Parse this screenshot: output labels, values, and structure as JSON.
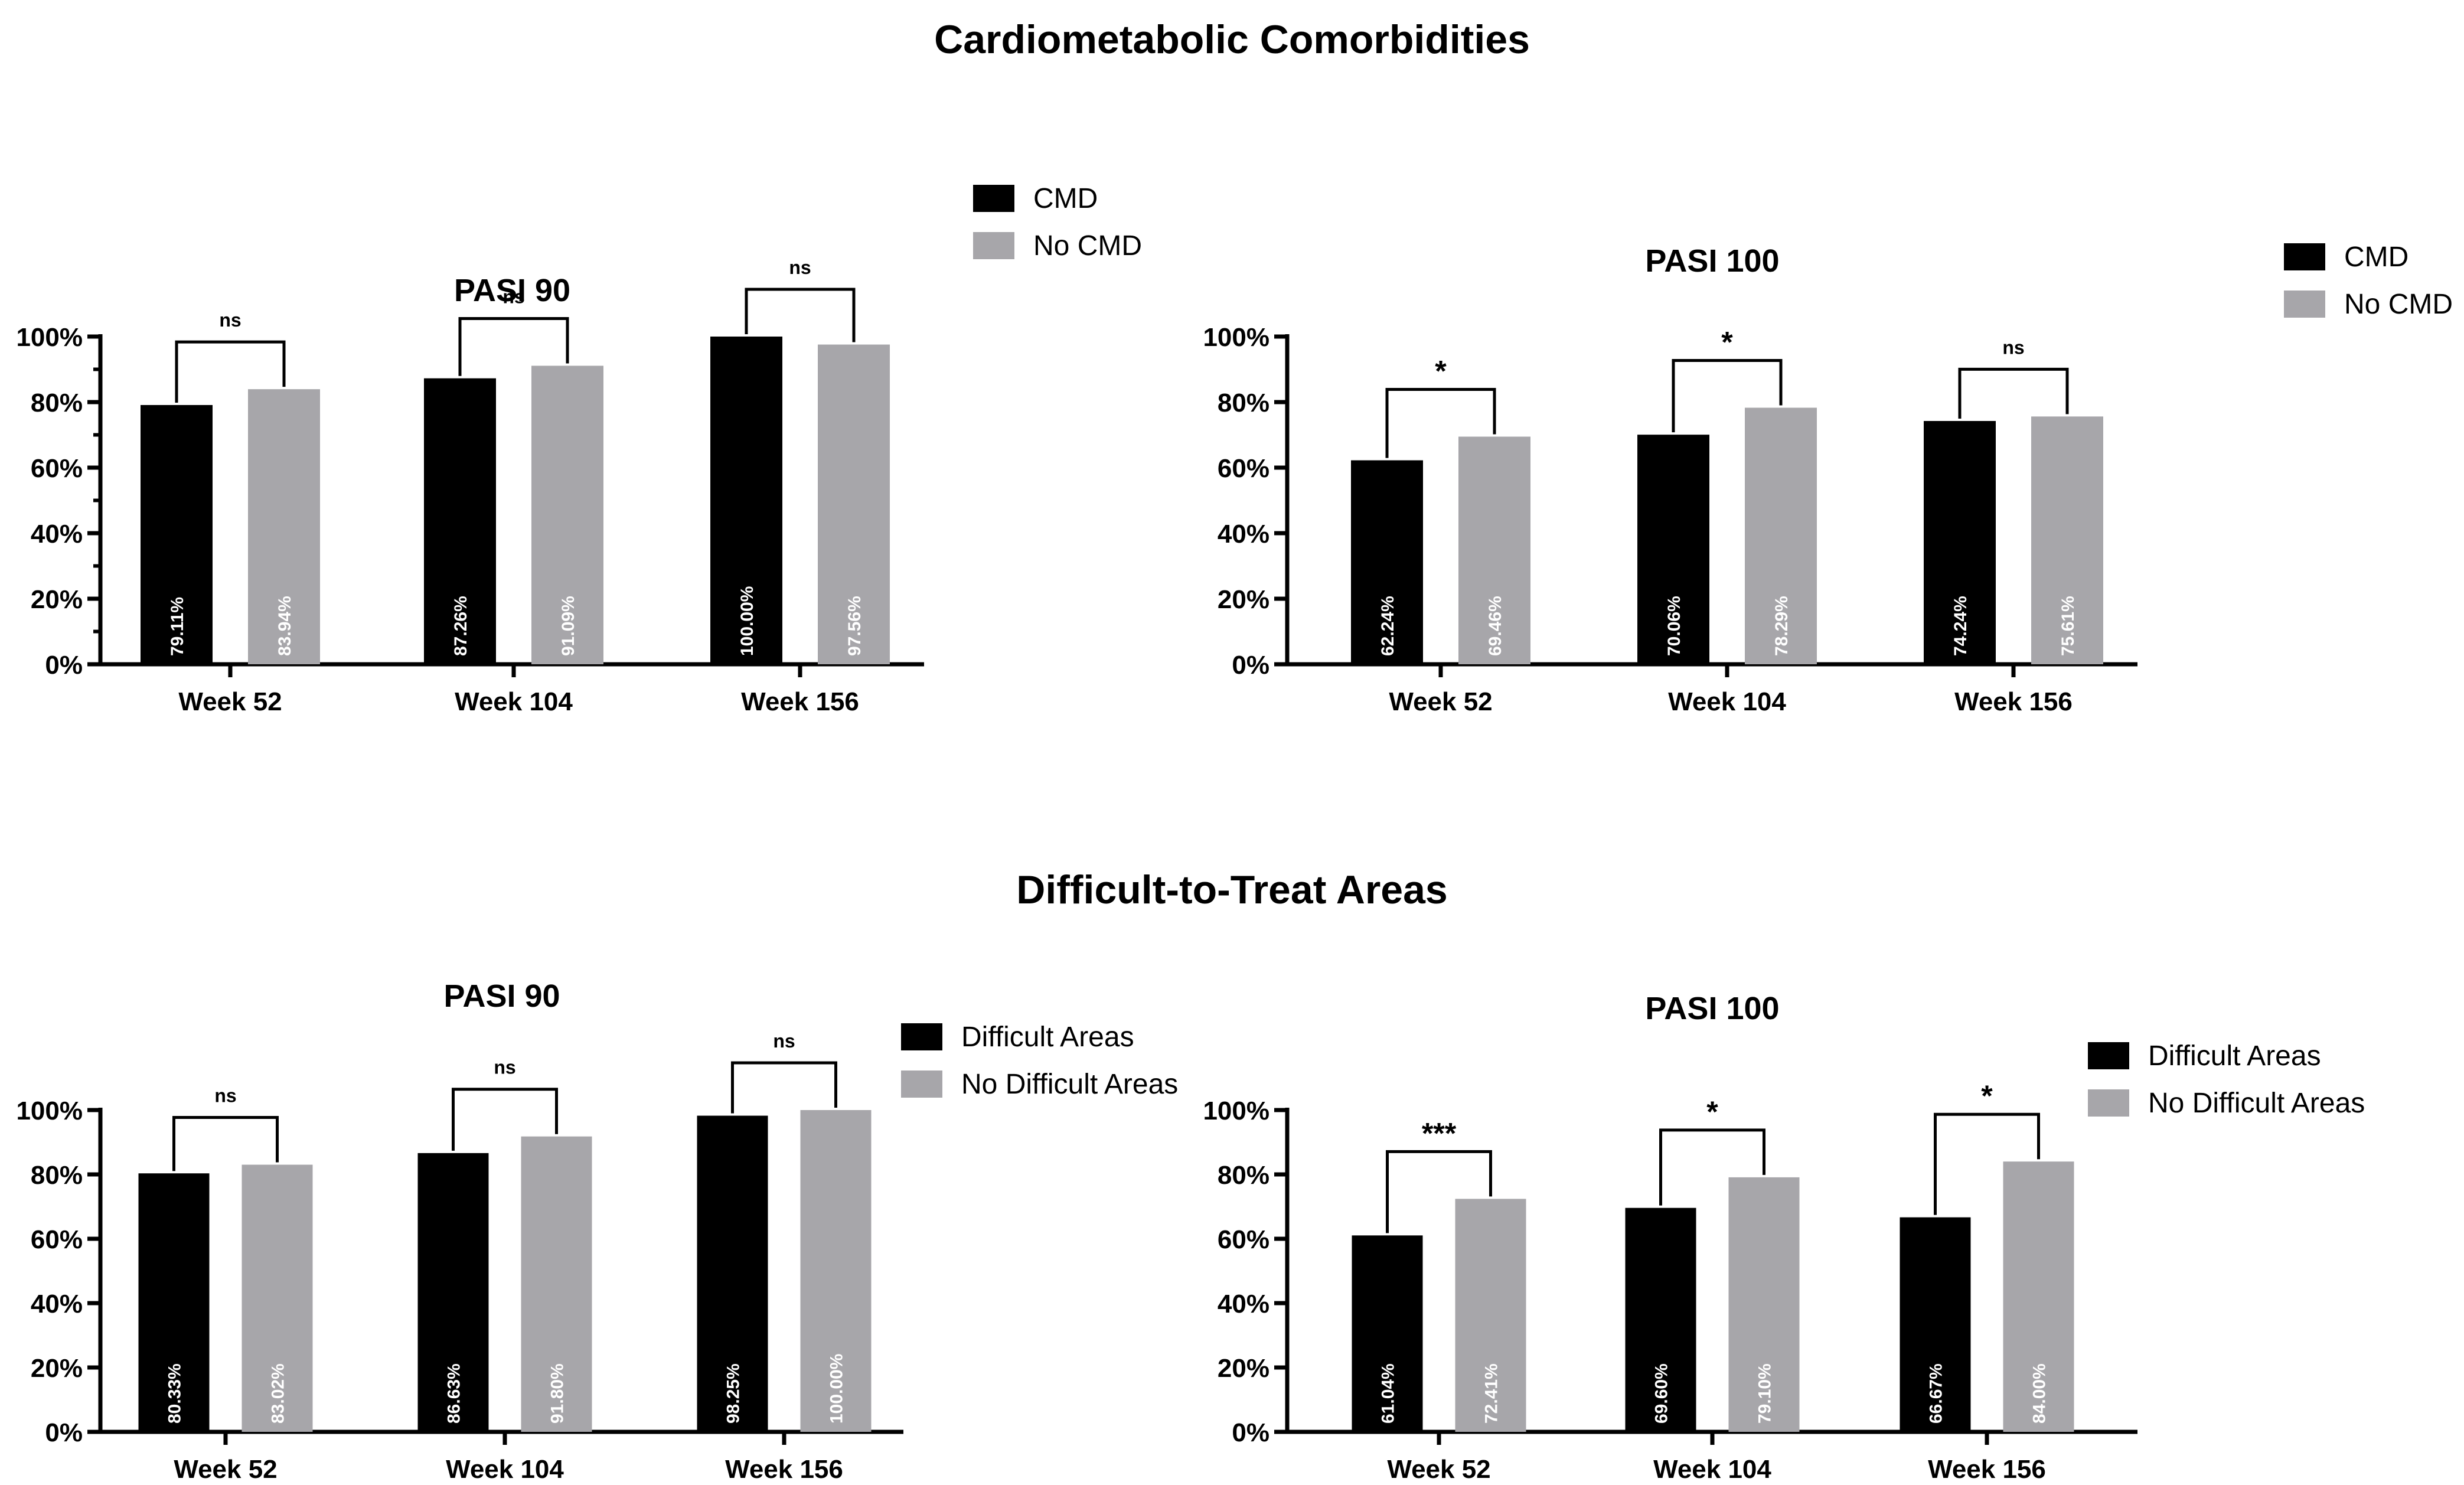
{
  "sections": [
    {
      "title": "Cardiometabolic Comorbidities"
    },
    {
      "title": "Difficult-to-Treat Areas"
    }
  ],
  "colors": {
    "series_a": "#000000",
    "series_b": "#a7a6aa"
  },
  "chart_data": [
    {
      "type": "bar",
      "title": "PASI 90",
      "categories": [
        "Week 52",
        "Week 104",
        "Week 156"
      ],
      "series": [
        {
          "name": "CMD",
          "values": [
            79.11,
            87.26,
            100.0
          ],
          "labels": [
            "79.11%",
            "87.26%",
            "100.00%"
          ]
        },
        {
          "name": "No CMD",
          "values": [
            83.94,
            91.09,
            97.56
          ],
          "labels": [
            "83.94%",
            "91.09%",
            "97.56%"
          ]
        }
      ],
      "significance": [
        "ns",
        "ns",
        "ns"
      ],
      "yticks": [
        "0%",
        "20%",
        "40%",
        "60%",
        "80%",
        "100%"
      ],
      "ylim": [
        0,
        100
      ],
      "xlabel": "",
      "ylabel": "",
      "legend": [
        "CMD",
        "No CMD"
      ]
    },
    {
      "type": "bar",
      "title": "PASI 100",
      "categories": [
        "Week 52",
        "Week 104",
        "Week 156"
      ],
      "series": [
        {
          "name": "CMD",
          "values": [
            62.24,
            70.06,
            74.24
          ],
          "labels": [
            "62.24%",
            "70.06%",
            "74.24%"
          ]
        },
        {
          "name": "No CMD",
          "values": [
            69.46,
            78.29,
            75.61
          ],
          "labels": [
            "69.46%",
            "78.29%",
            "75.61%"
          ]
        }
      ],
      "significance": [
        "*",
        "*",
        "ns"
      ],
      "yticks": [
        "0%",
        "20%",
        "40%",
        "60%",
        "80%",
        "100%"
      ],
      "ylim": [
        0,
        100
      ],
      "xlabel": "",
      "ylabel": "",
      "legend": [
        "CMD",
        "No CMD"
      ]
    },
    {
      "type": "bar",
      "title": "PASI 90",
      "categories": [
        "Week 52",
        "Week 104",
        "Week 156"
      ],
      "series": [
        {
          "name": "Difficult Areas",
          "values": [
            80.33,
            86.63,
            98.25
          ],
          "labels": [
            "80.33%",
            "86.63%",
            "98.25%"
          ]
        },
        {
          "name": "No Difficult Areas",
          "values": [
            83.02,
            91.8,
            100.0
          ],
          "labels": [
            "83.02%",
            "91.80%",
            "100.00%"
          ]
        }
      ],
      "significance": [
        "ns",
        "ns",
        "ns"
      ],
      "yticks": [
        "0%",
        "20%",
        "40%",
        "60%",
        "80%",
        "100%"
      ],
      "ylim": [
        0,
        100
      ],
      "xlabel": "",
      "ylabel": "",
      "legend": [
        "Difficult Areas",
        "No Difficult Areas"
      ]
    },
    {
      "type": "bar",
      "title": "PASI 100",
      "categories": [
        "Week 52",
        "Week 104",
        "Week 156"
      ],
      "series": [
        {
          "name": "Difficult Areas",
          "values": [
            61.04,
            69.6,
            66.67
          ],
          "labels": [
            "61.04%",
            "69.60%",
            "66.67%"
          ]
        },
        {
          "name": "No Difficult Areas",
          "values": [
            72.41,
            79.1,
            84.0
          ],
          "labels": [
            "72.41%",
            "79.10%",
            "84.00%"
          ]
        }
      ],
      "significance": [
        "***",
        "*",
        "*"
      ],
      "yticks": [
        "0%",
        "20%",
        "40%",
        "60%",
        "80%",
        "100%"
      ],
      "ylim": [
        0,
        100
      ],
      "xlabel": "",
      "ylabel": "",
      "legend": [
        "Difficult Areas",
        "No Difficult Areas"
      ]
    }
  ]
}
